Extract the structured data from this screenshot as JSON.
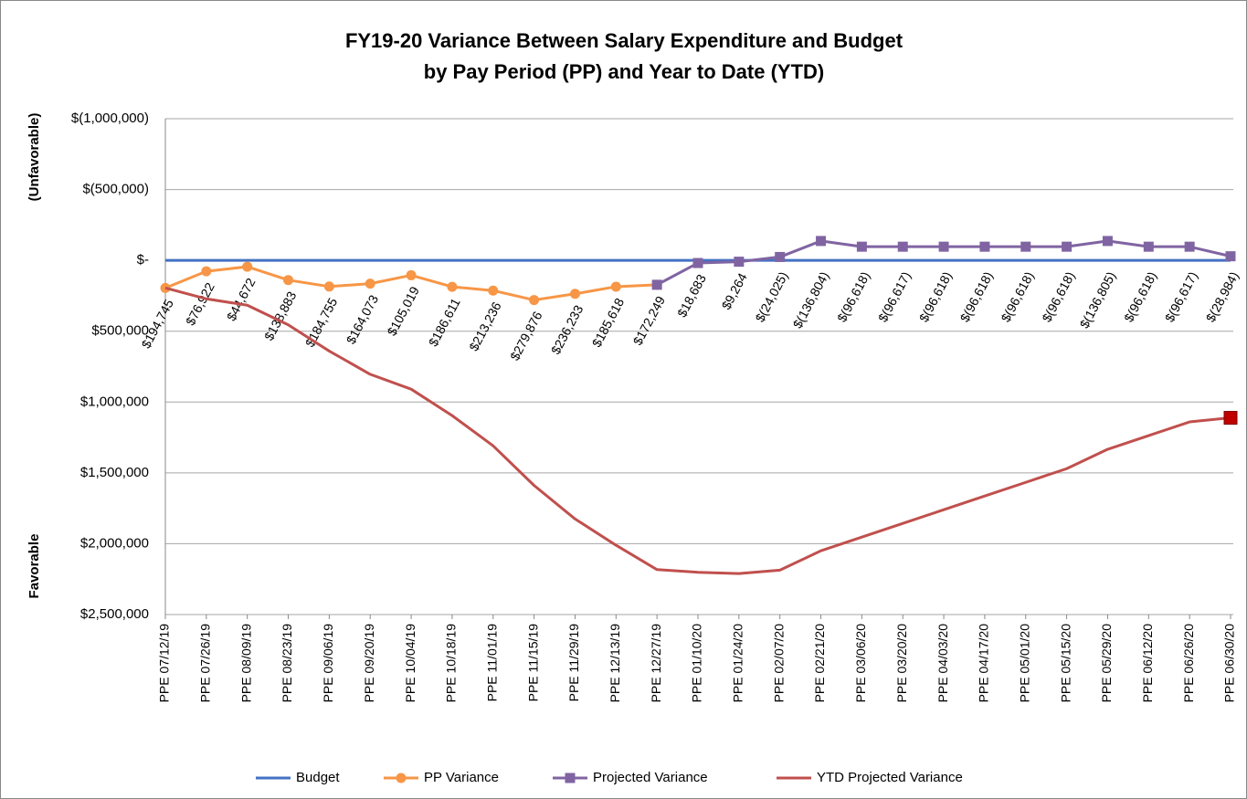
{
  "chart_data": {
    "type": "line",
    "title": "FY19-20 Variance Between Salary Expenditure and Budget",
    "subtitle": "by Pay Period (PP) and Year to Date (YTD)",
    "y_label_top": "(Unfavorable)",
    "y_label_bottom": "Favorable",
    "categories": [
      "PPE 07/12/19",
      "PPE 07/26/19",
      "PPE 08/09/19",
      "PPE 08/23/19",
      "PPE 09/06/19",
      "PPE 09/20/19",
      "PPE 10/04/19",
      "PPE 10/18/19",
      "PPE 11/01/19",
      "PPE 11/15/19",
      "PPE 11/29/19",
      "PPE 12/13/19",
      "PPE 12/27/19",
      "PPE 01/10/20",
      "PPE 01/24/20",
      "PPE 02/07/20",
      "PPE 02/21/20",
      "PPE 03/06/20",
      "PPE 03/20/20",
      "PPE 04/03/20",
      "PPE 04/17/20",
      "PPE 05/01/20",
      "PPE 05/15/20",
      "PPE 05/29/20",
      "PPE 06/12/20",
      "PPE 06/26/20",
      "PPE 06/30/20"
    ],
    "ylim": [
      -1000000,
      2500000
    ],
    "y_reversed": true,
    "yticks": [
      {
        "value": -1000000,
        "label": "$(1,000,000)"
      },
      {
        "value": -500000,
        "label": "$(500,000)"
      },
      {
        "value": 0,
        "label": "$-"
      },
      {
        "value": 500000,
        "label": "$500,000"
      },
      {
        "value": 1000000,
        "label": "$1,000,000"
      },
      {
        "value": 1500000,
        "label": "$1,500,000"
      },
      {
        "value": 2000000,
        "label": "$2,000,000"
      },
      {
        "value": 2500000,
        "label": "$2,500,000"
      }
    ],
    "grid": true,
    "legend": "bottom",
    "series": [
      {
        "name": "Budget",
        "color": "#4472c4",
        "marker": "none",
        "values": [
          0,
          0,
          0,
          0,
          0,
          0,
          0,
          0,
          0,
          0,
          0,
          0,
          0,
          0,
          0,
          0,
          0,
          0,
          0,
          0,
          0,
          0,
          0,
          0,
          0,
          0,
          0
        ]
      },
      {
        "name": "PP Variance",
        "color": "#f79646",
        "marker": "circle",
        "values": [
          194745,
          76922,
          44672,
          138883,
          184755,
          164073,
          105019,
          186611,
          213236,
          279876,
          236233,
          185618,
          172249,
          null,
          null,
          null,
          null,
          null,
          null,
          null,
          null,
          null,
          null,
          null,
          null,
          null,
          null
        ],
        "value_labels": [
          "$194,745",
          "$76,922",
          "$44,672",
          "$138,883",
          "$184,755",
          "$164,073",
          "$105,019",
          "$186,611",
          "$213,236",
          "$279,876",
          "$236,233",
          "$185,618",
          "$172,249",
          null,
          null,
          null,
          null,
          null,
          null,
          null,
          null,
          null,
          null,
          null,
          null,
          null,
          null
        ]
      },
      {
        "name": "Projected Variance",
        "color": "#8064a2",
        "marker": "square",
        "values": [
          null,
          null,
          null,
          null,
          null,
          null,
          null,
          null,
          null,
          null,
          null,
          null,
          172249,
          18683,
          9264,
          -24025,
          -136804,
          -96618,
          -96617,
          -96618,
          -96618,
          -96618,
          -96618,
          -136805,
          -96618,
          -96617,
          -28984
        ],
        "value_labels": [
          null,
          null,
          null,
          null,
          null,
          null,
          null,
          null,
          null,
          null,
          null,
          null,
          null,
          "$18,683",
          "$9,264",
          "$(24,025)",
          "$(136,804)",
          "$(96,618)",
          "$(96,617)",
          "$(96,618)",
          "$(96,618)",
          "$(96,618)",
          "$(96,618)",
          "$(136,805)",
          "$(96,618)",
          "$(96,617)",
          "$(28,984)"
        ]
      },
      {
        "name": "YTD Projected Variance",
        "color": "#c0504d",
        "marker": "none",
        "end_marker_color": "#c00000",
        "values": [
          194745,
          271667,
          316339,
          455222,
          639977,
          804050,
          909069,
          1095680,
          1308916,
          1588792,
          1825025,
          2010643,
          2182892,
          2201575,
          2210839,
          2186814,
          2050010,
          1953392,
          1856775,
          1760157,
          1663539,
          1566921,
          1470303,
          1333498,
          1236880,
          1140263,
          1111279
        ]
      }
    ]
  }
}
